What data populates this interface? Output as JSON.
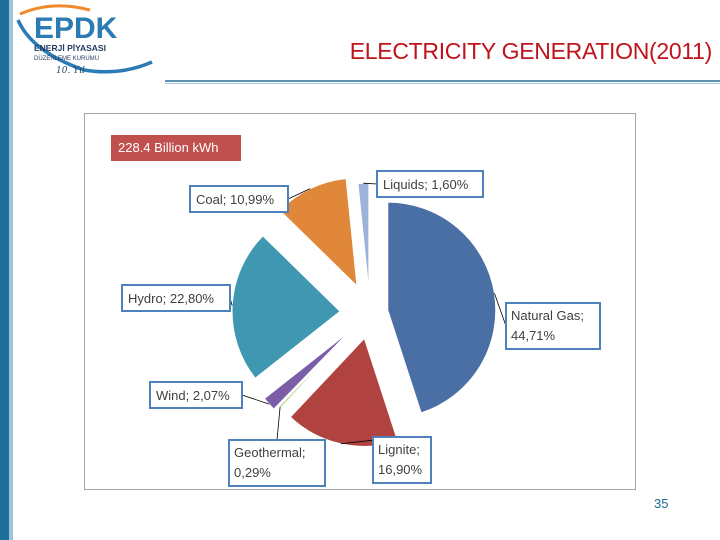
{
  "header": {
    "title": "ELECTRICITY GENERATION(2011)",
    "logo": {
      "mark": "EPDK",
      "line1": "ENERJİ PİYASASI",
      "line2": "DÜZENLEME KURUMU",
      "signature": "10. Yıl"
    }
  },
  "total_label": "228.4 Billion kWh",
  "page_number": "35",
  "colors": {
    "title": "#c0141b",
    "accent_bar": "#1d6f98",
    "total_box": "#c0504d"
  },
  "chart_data": {
    "type": "pie",
    "title": "",
    "exploded": true,
    "slices": [
      {
        "name": "Natural Gas",
        "value": 44.71,
        "label_lines": [
          "Natural Gas;",
          "44,71%"
        ],
        "color": "#4a6fa5"
      },
      {
        "name": "Lignite",
        "value": 16.9,
        "label_lines": [
          "Lignite;",
          "16,90%"
        ],
        "color": "#b0433f"
      },
      {
        "name": "Geothermal",
        "value": 0.29,
        "label_lines": [
          "Geothermal;",
          "0,29%"
        ],
        "color": "#9bbb59"
      },
      {
        "name": "Wind",
        "value": 2.07,
        "label_lines": [
          "Wind; 2,07%"
        ],
        "color": "#7c5da8"
      },
      {
        "name": "Hydro",
        "value": 22.8,
        "label_lines": [
          "Hydro; 22,80%"
        ],
        "color": "#3f97b1"
      },
      {
        "name": "Coal",
        "value": 10.99,
        "label_lines": [
          "Coal; 10,99%"
        ],
        "color": "#e0873a"
      },
      {
        "name": "Liquids",
        "value": 1.6,
        "label_lines": [
          "Liquids; 1,60%"
        ],
        "color": "#9db2d8"
      }
    ]
  }
}
